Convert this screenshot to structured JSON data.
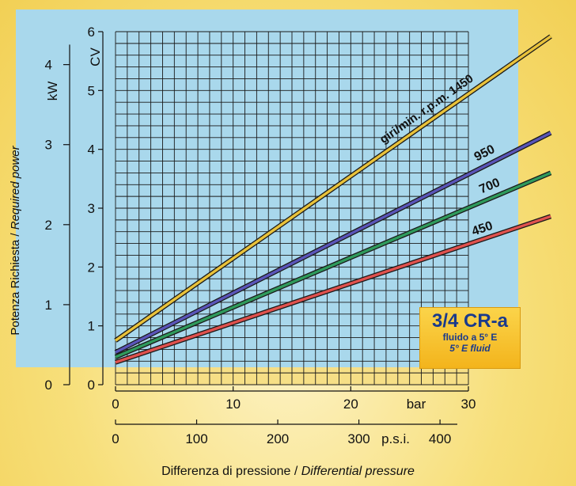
{
  "chart_data": {
    "type": "line",
    "title": "",
    "x_axes": [
      {
        "unit": "bar",
        "ticks": [
          "0",
          "10",
          "20",
          "30"
        ],
        "range": [
          0,
          30
        ]
      },
      {
        "unit": "p.s.i.",
        "ticks": [
          "0",
          "100",
          "200",
          "300",
          "400"
        ]
      }
    ],
    "y_axes": [
      {
        "unit": "kW",
        "ticks": [
          "0",
          "1",
          "2",
          "3",
          "4"
        ],
        "range": [
          0,
          4
        ]
      },
      {
        "unit": "CV",
        "ticks": [
          "0",
          "1",
          "2",
          "3",
          "4",
          "5",
          "6"
        ],
        "range": [
          0,
          6
        ]
      }
    ],
    "xlabel_main": "Differenza di pressione / ",
    "xlabel_italic": "Differential pressure",
    "ylabel_main": "Potenza Richiesta / ",
    "ylabel_italic": "Required power",
    "series": [
      {
        "name": "giri/min. r.p.m. 1450",
        "color": "#e9c23a",
        "x": [
          0,
          37
        ],
        "y": [
          0.75,
          5.92
        ]
      },
      {
        "name": "950",
        "color": "#5a55b8",
        "x": [
          0,
          37
        ],
        "y": [
          0.55,
          4.28
        ]
      },
      {
        "name": "700",
        "color": "#2f9a5c",
        "x": [
          0,
          37
        ],
        "y": [
          0.47,
          3.6
        ]
      },
      {
        "name": "450",
        "color": "#e0524e",
        "x": [
          0,
          37
        ],
        "y": [
          0.38,
          2.86
        ]
      }
    ],
    "grid": true
  },
  "badge": {
    "model": "3/4 CR-a",
    "fluid_it": "fluido a 5° E",
    "fluid_en": "5° E fluid"
  }
}
